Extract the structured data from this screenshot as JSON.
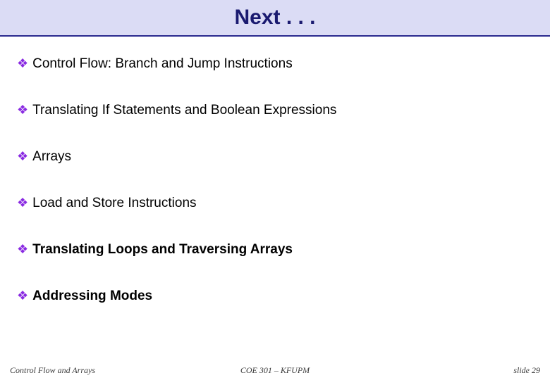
{
  "slide": {
    "title": "Next . . .",
    "title_bar_bg": "#dbdcf5",
    "title_bar_border": "#2a2a8f",
    "title_color": "#1a1a70",
    "title_font": "Comic Sans MS",
    "title_fontsize": 30,
    "background": "#ffffff",
    "bullets": [
      {
        "text": "Control Flow: Branch and Jump Instructions",
        "bold": false
      },
      {
        "text": "Translating If Statements and Boolean Expressions",
        "bold": false
      },
      {
        "text": "Arrays",
        "bold": false
      },
      {
        "text": "Load and Store Instructions",
        "bold": false
      },
      {
        "text": "Translating Loops and Traversing Arrays",
        "bold": true
      },
      {
        "text": "Addressing Modes",
        "bold": true
      }
    ],
    "bullet_glyph": "❖",
    "bullet_color": "#8a2be2",
    "bullet_fontsize": 19,
    "bullet_spacing": 44,
    "footer": {
      "left": "Control Flow and Arrays",
      "center": "COE 301 – KFUPM",
      "right": "slide 29",
      "font": "Times New Roman",
      "fontsize": 12,
      "color": "#3a3a3a"
    }
  }
}
